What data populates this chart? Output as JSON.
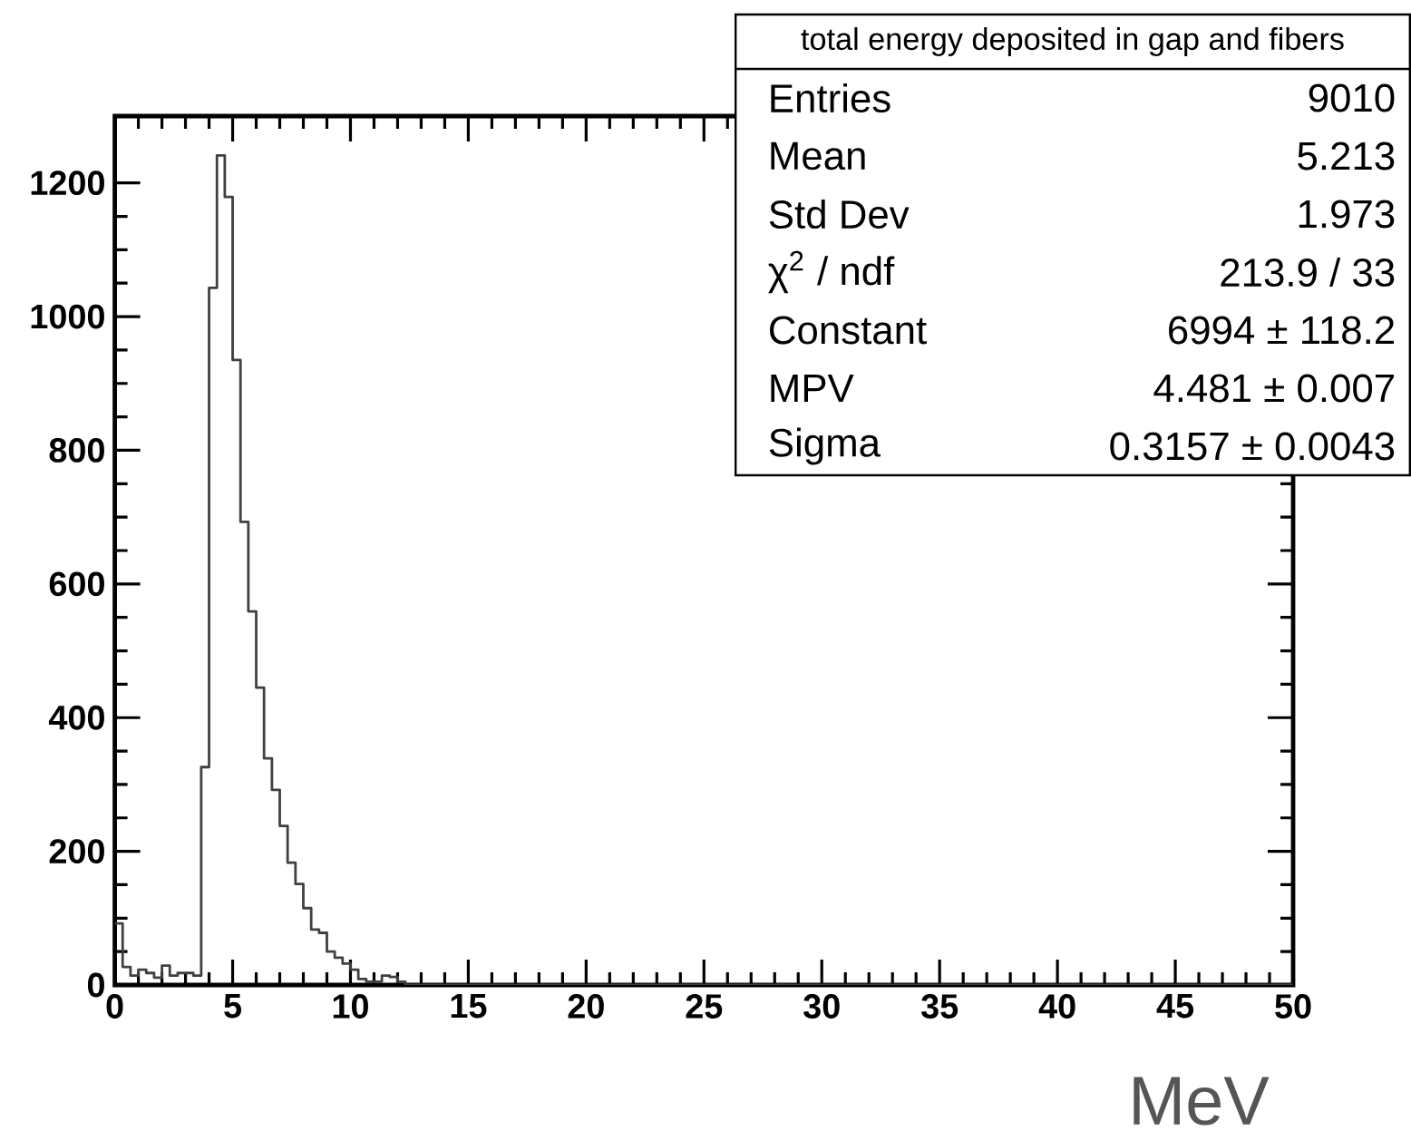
{
  "chart_data": {
    "type": "histogram",
    "xlabel": "MeV",
    "bins": [
      0,
      0.3333,
      0.6667,
      1,
      1.3333,
      1.6667,
      2,
      2.3333,
      2.6667,
      3,
      3.3333,
      3.6667,
      4,
      4.3333,
      4.6667,
      5,
      5.3333,
      5.6667,
      6,
      6.3333,
      6.6667,
      7,
      7.3333,
      7.6667,
      8,
      8.3333,
      8.6667,
      9,
      9.3333,
      9.6667,
      10,
      10.3333,
      10.6667,
      11,
      11.3333,
      11.6667,
      12,
      12.3333,
      12.6667,
      13,
      13.3333,
      13.6667,
      14,
      14.3333,
      14.6667,
      15,
      15.3333,
      15.6667,
      16,
      16.3333,
      16.6667,
      17,
      17.3333,
      17.6667,
      18,
      18.3333,
      18.6667,
      19,
      19.3333,
      19.6667,
      20,
      20.3333,
      20.6667,
      21,
      21.3333,
      21.6667,
      22,
      22.3333,
      22.6667,
      23,
      23.3333,
      23.6667,
      24,
      24.3333,
      24.6667,
      25,
      25.3333,
      25.6667,
      26,
      26.3333,
      26.6667,
      27,
      27.3333,
      27.6667,
      28,
      28.3333,
      28.6667,
      29,
      29.3333,
      29.6667,
      30,
      30.3333,
      30.6667,
      31,
      31.3333,
      31.6667,
      32,
      32.3333,
      32.6667,
      33,
      33.3333,
      33.6667,
      34,
      34.3333,
      34.6667,
      35,
      35.3333,
      35.6667,
      36,
      36.3333,
      36.6667,
      37,
      37.3333,
      37.6667,
      38,
      38.3333,
      38.6667,
      39,
      39.3333,
      39.6667,
      40,
      40.3333,
      40.6667,
      41,
      41.3333,
      41.6667,
      42,
      42.3333,
      42.6667,
      43,
      43.3333,
      43.6667,
      44,
      44.3333,
      44.6667,
      45,
      45.3333,
      45.6667,
      46,
      46.3333,
      46.6667,
      47,
      47.3333,
      47.6667,
      48,
      48.3333,
      48.6667,
      49,
      49.3333,
      49.6667,
      50
    ],
    "values": [
      92,
      27,
      14,
      23,
      18,
      11,
      29,
      14,
      18,
      18,
      14,
      326,
      1043,
      1241,
      1179,
      935,
      693,
      559,
      445,
      339,
      292,
      238,
      183,
      151,
      115,
      83,
      78,
      50,
      41,
      32,
      23,
      9,
      5,
      5,
      14,
      12,
      5,
      0,
      0,
      0,
      0,
      0,
      0,
      0,
      0,
      0,
      0,
      0,
      0,
      0,
      0,
      0,
      0,
      0,
      0,
      0,
      0,
      0,
      0,
      0,
      0,
      0,
      0,
      0,
      0,
      0,
      0,
      0,
      0,
      0,
      0,
      0,
      0,
      0,
      0,
      0,
      0,
      0,
      0,
      0,
      0,
      0,
      0,
      0,
      0,
      0,
      0,
      0,
      0,
      0,
      0,
      0,
      0,
      0,
      0,
      0,
      0,
      0,
      0,
      0,
      0,
      0,
      0,
      0,
      0,
      0,
      0,
      0,
      0,
      0,
      0,
      0,
      0,
      0,
      0,
      0,
      0,
      0,
      0,
      0,
      0,
      0,
      0,
      0,
      0,
      0,
      0,
      0,
      0,
      0,
      0,
      0,
      0,
      0,
      0,
      0,
      0,
      0,
      0,
      0,
      0,
      0,
      0,
      0,
      0,
      0,
      0,
      0,
      0,
      0
    ],
    "color": "#404040",
    "xlim": [
      0,
      50
    ],
    "xticks": [
      0,
      5,
      10,
      15,
      20,
      25,
      30,
      35,
      40,
      45,
      50
    ],
    "ylim": [
      0,
      1300
    ],
    "yticks": [
      0,
      200,
      400,
      600,
      800,
      1000,
      1200
    ],
    "grid": false,
    "annotations": [
      "total energy deposited in gap and fibers",
      "Entries",
      "9010",
      "Mean",
      "5.213",
      "Std Dev",
      "1.973",
      "χ$^{2}$ / ndf",
      "213.9 / 33",
      "Constant",
      "6994 ± 118.2",
      "MPV",
      "4.481 ± 0.007",
      "Sigma",
      "0.3157 ± 0.0043"
    ]
  }
}
